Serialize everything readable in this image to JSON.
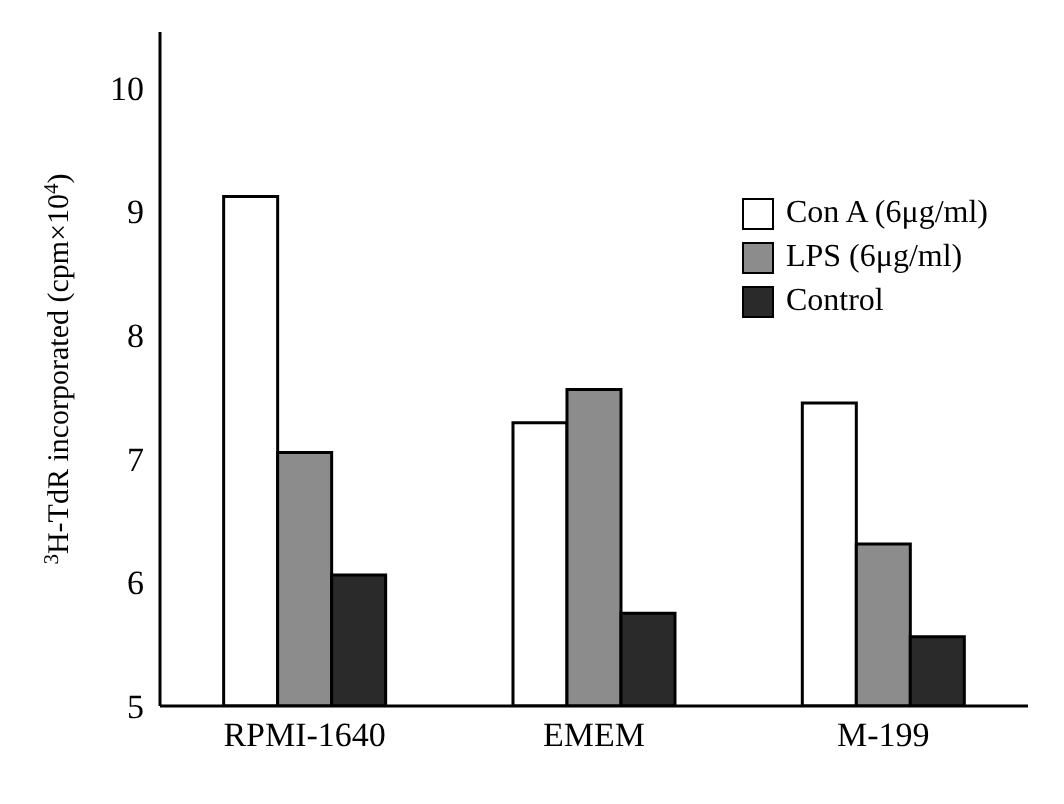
{
  "chart_data": {
    "type": "bar",
    "ylabel": "$^{3}$H-TdR incorporated (cpm×10$^{4}$)",
    "categories": [
      "RPMI-1640",
      "EMEM",
      "M-199"
    ],
    "series": [
      {
        "name": "Con A (6μg/ml)",
        "color": "#ffffff",
        "values": [
          9.12,
          7.29,
          7.45
        ]
      },
      {
        "name": "LPS (6μg/ml)",
        "color": "#8c8c8c",
        "values": [
          7.05,
          7.56,
          6.31
        ]
      },
      {
        "name": "Control",
        "color": "#2a2a2a",
        "values": [
          6.06,
          5.75,
          5.56
        ]
      }
    ],
    "ylim": [
      5,
      10.45
    ],
    "yticks": [
      5,
      6,
      7,
      8,
      9,
      10
    ],
    "grid": false,
    "legend": "top right"
  }
}
